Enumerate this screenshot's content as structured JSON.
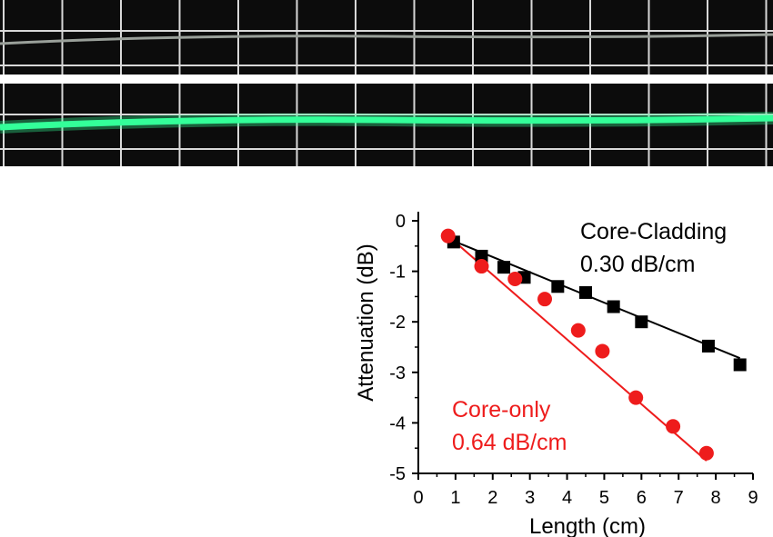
{
  "photos": {
    "top": {
      "description_icon": "unlit-fiber-photo",
      "fiber_color": "#9aa09a"
    },
    "bottom": {
      "description_icon": "green-lit-fiber-photo",
      "fiber_color": "#33ff99"
    }
  },
  "chart_data": {
    "type": "scatter",
    "title": "",
    "xlabel": "Length (cm)",
    "ylabel": "Attenuation (dB)",
    "xlim": [
      0,
      9
    ],
    "ylim": [
      -5,
      0
    ],
    "xticks": [
      "0",
      "1",
      "2",
      "3",
      "4",
      "5",
      "6",
      "7",
      "8",
      "9"
    ],
    "yticks": [
      "0",
      "-1",
      "-2",
      "-3",
      "-4",
      "-5"
    ],
    "grid": false,
    "series": [
      {
        "name": "Core-Cladding",
        "slope_label": "0.30 dB/cm",
        "color": "#000000",
        "marker": "square",
        "x": [
          0.95,
          1.7,
          2.3,
          2.85,
          3.75,
          4.5,
          5.25,
          6.0,
          7.8,
          8.65
        ],
        "y": [
          -0.42,
          -0.7,
          -0.92,
          -1.12,
          -1.3,
          -1.42,
          -1.7,
          -2.0,
          -2.48,
          -2.85
        ],
        "fit": {
          "x": [
            0.95,
            8.65
          ],
          "y": [
            -0.4,
            -2.72
          ]
        }
      },
      {
        "name": "Core-only",
        "slope_label": "0.64 dB/cm",
        "color": "#ee1c1c",
        "marker": "circle",
        "x": [
          0.8,
          1.7,
          2.6,
          3.4,
          4.3,
          4.95,
          5.85,
          6.85,
          7.75
        ],
        "y": [
          -0.3,
          -0.9,
          -1.15,
          -1.55,
          -2.17,
          -2.58,
          -3.5,
          -4.07,
          -4.6
        ],
        "fit": {
          "x": [
            0.8,
            7.75
          ],
          "y": [
            -0.3,
            -4.75
          ]
        }
      }
    ]
  }
}
